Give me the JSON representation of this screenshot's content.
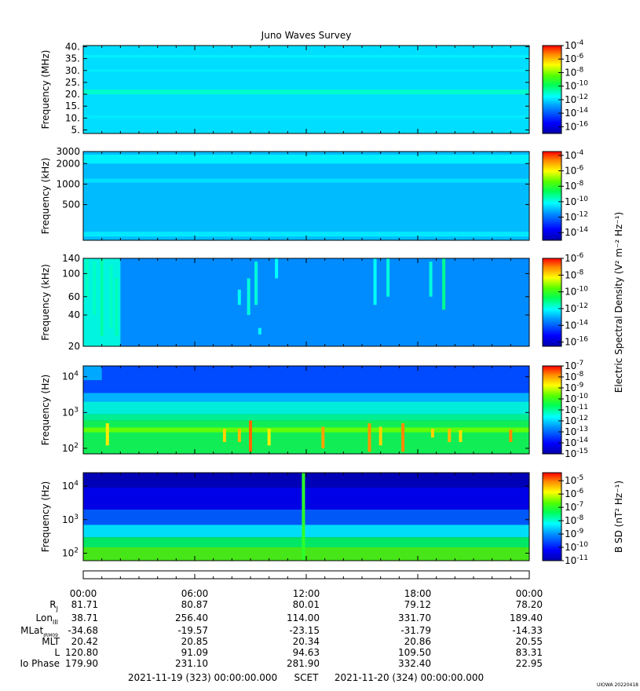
{
  "chart_data": {
    "type": "heatmap",
    "title": "Juno Waves Survey",
    "x_axis": {
      "start": "2021-11-19 (323) 00:00:00.000",
      "end": "2021-11-20 (324) 00:00:00.000",
      "center_label": "SCET",
      "tick_labels": [
        "00:00",
        "06:00",
        "12:00",
        "18:00",
        "00:00"
      ]
    },
    "ephemeris": {
      "rows": [
        {
          "label": "R",
          "sub": "J",
          "values": [
            "81.71",
            "80.87",
            "80.01",
            "79.12",
            "78.20"
          ]
        },
        {
          "label": "Lon",
          "sub": "III",
          "values": [
            "38.71",
            "256.40",
            "114.00",
            "331.70",
            "189.40"
          ]
        },
        {
          "label": "MLat",
          "sub": "JRM09",
          "values": [
            "-34.68",
            "-19.57",
            "-23.15",
            "-31.79",
            "-14.33"
          ]
        },
        {
          "label": "MLT",
          "sub": "",
          "values": [
            "20.42",
            "20.85",
            "20.34",
            "20.86",
            "20.55"
          ]
        },
        {
          "label": "L",
          "sub": "",
          "values": [
            "120.80",
            "91.09",
            "94.63",
            "109.50",
            "83.31"
          ]
        },
        {
          "label": "Io Phase",
          "sub": "",
          "values": [
            "179.90",
            "231.10",
            "281.90",
            "332.40",
            "22.95"
          ]
        }
      ]
    },
    "panels": [
      {
        "ylabel": "Frequency (MHz)",
        "y_scale": "linear",
        "ylim": [
          3.5,
          40.5
        ],
        "y_ticks": [
          5,
          10,
          15,
          20,
          25,
          30,
          35,
          40
        ],
        "y_tick_labels": [
          "5.",
          "10.",
          "15.",
          "20.",
          "25.",
          "30.",
          "35.",
          "40."
        ],
        "colorbar": {
          "ticks": [
            -16,
            -14,
            -12,
            -10,
            -8,
            -6,
            -4
          ],
          "range": [
            -17,
            -4
          ],
          "base": "10",
          "cbar_label": ""
        },
        "base_level": -12,
        "bands": [
          {
            "y0": 20,
            "y1": 22,
            "level": -11
          },
          {
            "y0": 35.5,
            "y1": 36.5,
            "level": -11.7
          },
          {
            "y0": 29.5,
            "y1": 30.5,
            "level": -11.8
          },
          {
            "y0": 10,
            "y1": 11,
            "level": -11.8
          }
        ],
        "bursts": []
      },
      {
        "ylabel": "Frequency (kHz)",
        "y_scale": "log",
        "ylim": [
          150,
          3000
        ],
        "y_ticks": [
          3000,
          2000,
          1000,
          500
        ],
        "y_tick_labels": [
          "3000",
          "2000",
          "1000",
          "500"
        ],
        "colorbar": {
          "ticks": [
            -14,
            -12,
            -10,
            -8,
            -6,
            -4
          ],
          "range": [
            -15,
            -3.5
          ],
          "base": "10",
          "cbar_label": ""
        },
        "base_level": -11,
        "bands": [
          {
            "y0": 2000,
            "y1": 2700,
            "level": -10.3
          },
          {
            "y0": 1050,
            "y1": 1200,
            "level": -10.5
          },
          {
            "y0": 170,
            "y1": 200,
            "level": -10.4
          }
        ],
        "bursts": []
      },
      {
        "ylabel": "Frequency (kHz)",
        "y_scale": "log",
        "ylim": [
          20,
          140
        ],
        "y_ticks": [
          140,
          100,
          60,
          40,
          20
        ],
        "y_tick_labels": [
          "140",
          "100",
          "60",
          "40",
          "20"
        ],
        "colorbar": {
          "ticks": [
            -16,
            -14,
            -12,
            -10,
            -8,
            -6
          ],
          "range": [
            -16.5,
            -6
          ],
          "base": "10",
          "cbar_label": "Electric Spectral Density (V² m⁻² Hz⁻¹)"
        },
        "base_level": -13.4,
        "bands": [
          {
            "y0": 20,
            "y1": 140,
            "x0": 0,
            "x1": 2.0,
            "level": -11.8
          }
        ],
        "bursts": [
          {
            "t": 0.2,
            "y0": 60,
            "y1": 140,
            "level": -11.6
          },
          {
            "t": 0.6,
            "y0": 40,
            "y1": 130,
            "level": -11.6
          },
          {
            "t": 1.0,
            "y0": 25,
            "y1": 140,
            "level": -11.4
          },
          {
            "t": 1.5,
            "y0": 30,
            "y1": 120,
            "level": -11.6
          },
          {
            "t": 1.8,
            "y0": 25,
            "y1": 90,
            "level": -11.5
          },
          {
            "t": 8.4,
            "y0": 50,
            "y1": 70,
            "level": -12.0
          },
          {
            "t": 8.9,
            "y0": 40,
            "y1": 90,
            "level": -11.8
          },
          {
            "t": 9.3,
            "y0": 50,
            "y1": 130,
            "level": -11.8
          },
          {
            "t": 9.5,
            "y0": 26,
            "y1": 30,
            "level": -12.0
          },
          {
            "t": 10.4,
            "y0": 90,
            "y1": 140,
            "level": -12.1
          },
          {
            "t": 15.7,
            "y0": 50,
            "y1": 140,
            "level": -12.0
          },
          {
            "t": 16.4,
            "y0": 60,
            "y1": 140,
            "level": -11.8
          },
          {
            "t": 18.7,
            "y0": 60,
            "y1": 130,
            "level": -11.8
          },
          {
            "t": 19.4,
            "y0": 45,
            "y1": 140,
            "level": -11.2
          }
        ]
      },
      {
        "ylabel": "Frequency (Hz)",
        "y_scale": "log",
        "ylim": [
          70,
          20000
        ],
        "y_ticks": [
          10000,
          1000,
          100
        ],
        "y_tick_labels": [
          "10^4",
          "10^3",
          "10^2"
        ],
        "colorbar": {
          "ticks": [
            -15,
            -14,
            -13,
            -12,
            -11,
            -10,
            -9,
            -8,
            -7
          ],
          "range": [
            -15,
            -7
          ],
          "base": "10",
          "cbar_label": ""
        },
        "base_level": -13.3,
        "bands": [
          {
            "y0": 2000,
            "y1": 3500,
            "level": -12.2
          },
          {
            "y0": 900,
            "y1": 2000,
            "level": -11.4
          },
          {
            "y0": 600,
            "y1": 900,
            "level": -10.9
          },
          {
            "y0": 70,
            "y1": 600,
            "level": -10.4
          },
          {
            "y0": 280,
            "y1": 380,
            "level": -9.6
          },
          {
            "y0": 8000,
            "y1": 20000,
            "x0": 0,
            "x1": 1.0,
            "level": -12.3
          }
        ],
        "bursts": [
          {
            "t": 1.3,
            "y0": 120,
            "y1": 500,
            "level": -8.6
          },
          {
            "t": 7.6,
            "y0": 150,
            "y1": 350,
            "level": -8.4
          },
          {
            "t": 8.4,
            "y0": 150,
            "y1": 350,
            "level": -8.2
          },
          {
            "t": 9.0,
            "y0": 80,
            "y1": 600,
            "level": -7.6
          },
          {
            "t": 10.0,
            "y0": 120,
            "y1": 350,
            "level": -8.6
          },
          {
            "t": 12.9,
            "y0": 100,
            "y1": 400,
            "level": -8.0
          },
          {
            "t": 15.4,
            "y0": 80,
            "y1": 500,
            "level": -7.9
          },
          {
            "t": 16.0,
            "y0": 120,
            "y1": 400,
            "level": -8.4
          },
          {
            "t": 17.2,
            "y0": 80,
            "y1": 500,
            "level": -7.8
          },
          {
            "t": 18.8,
            "y0": 200,
            "y1": 350,
            "level": -8.4
          },
          {
            "t": 19.7,
            "y0": 150,
            "y1": 350,
            "level": -8.2
          },
          {
            "t": 20.3,
            "y0": 150,
            "y1": 320,
            "level": -8.5
          },
          {
            "t": 23.0,
            "y0": 150,
            "y1": 330,
            "level": -7.8
          }
        ]
      },
      {
        "ylabel": "Frequency (Hz)",
        "y_scale": "log",
        "ylim": [
          60,
          25000
        ],
        "y_ticks": [
          10000,
          1000,
          100
        ],
        "y_tick_labels": [
          "10^4",
          "10^3",
          "10^2"
        ],
        "colorbar": {
          "ticks": [
            -11,
            -10,
            -9,
            -8,
            -7,
            -6,
            -5
          ],
          "range": [
            -11,
            -4.4
          ],
          "base": "10",
          "cbar_label": "B SD (nT² Hz⁻¹)"
        },
        "base_level": -10.8,
        "bands": [
          {
            "y0": 9000,
            "y1": 25000,
            "level": -10.9
          },
          {
            "y0": 2000,
            "y1": 9000,
            "level": -10.4
          },
          {
            "y0": 700,
            "y1": 2000,
            "level": -9.4
          },
          {
            "y0": 300,
            "y1": 700,
            "level": -8.3
          },
          {
            "y0": 150,
            "y1": 300,
            "level": -7.4
          },
          {
            "y0": 60,
            "y1": 150,
            "level": -6.7
          }
        ],
        "bursts": [
          {
            "t": 11.85,
            "y0": 60,
            "y1": 25000,
            "level": -7.0
          }
        ]
      }
    ],
    "footer_code": "UIOWA 20220418"
  }
}
